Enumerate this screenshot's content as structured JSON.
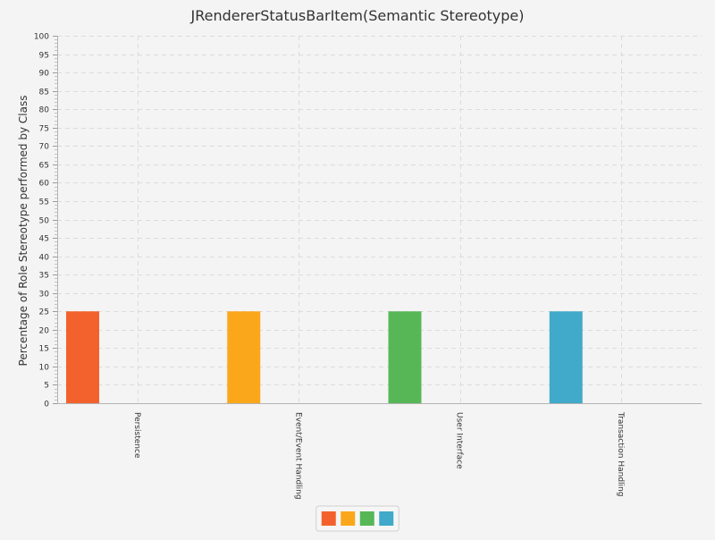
{
  "chart_data": {
    "type": "bar",
    "title": "JRendererStatusBarItem(Semantic Stereotype)",
    "xlabel": "",
    "ylabel": "Percentage of Role Stereotype performed by Class",
    "ylim": [
      0,
      100
    ],
    "ytick_step": 5,
    "categories": [
      "Persistence",
      "Event/Event Handling",
      "User Interface",
      "Transaction Handling"
    ],
    "values": [
      25,
      25,
      25,
      25
    ],
    "colors": [
      "#f3622d",
      "#fba71b",
      "#57b757",
      "#41a9c9"
    ],
    "grid": true,
    "legend": {
      "position": "bottom",
      "entries": [
        "",
        "",
        "",
        ""
      ]
    }
  }
}
